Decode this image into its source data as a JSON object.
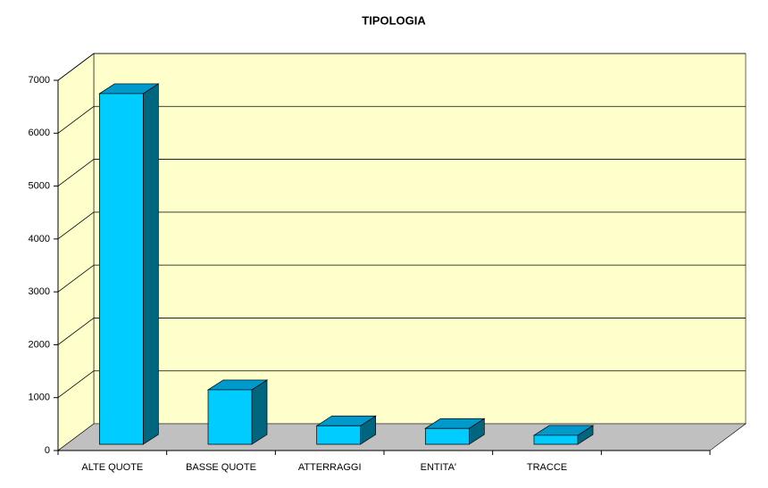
{
  "chart_data": {
    "type": "bar",
    "title": "TIPOLOGIA",
    "categories": [
      "ALTE QUOTE",
      "BASSE QUOTE",
      "ATTERRAGGI",
      "ENTITA'",
      "TRACCE",
      null
    ],
    "values": [
      6630,
      1030,
      350,
      300,
      170,
      null
    ],
    "color": "#00ccff",
    "ylim": [
      0,
      7000
    ],
    "yticks": [
      0,
      1000,
      2000,
      3000,
      4000,
      5000,
      6000,
      7000
    ],
    "grid": true
  }
}
